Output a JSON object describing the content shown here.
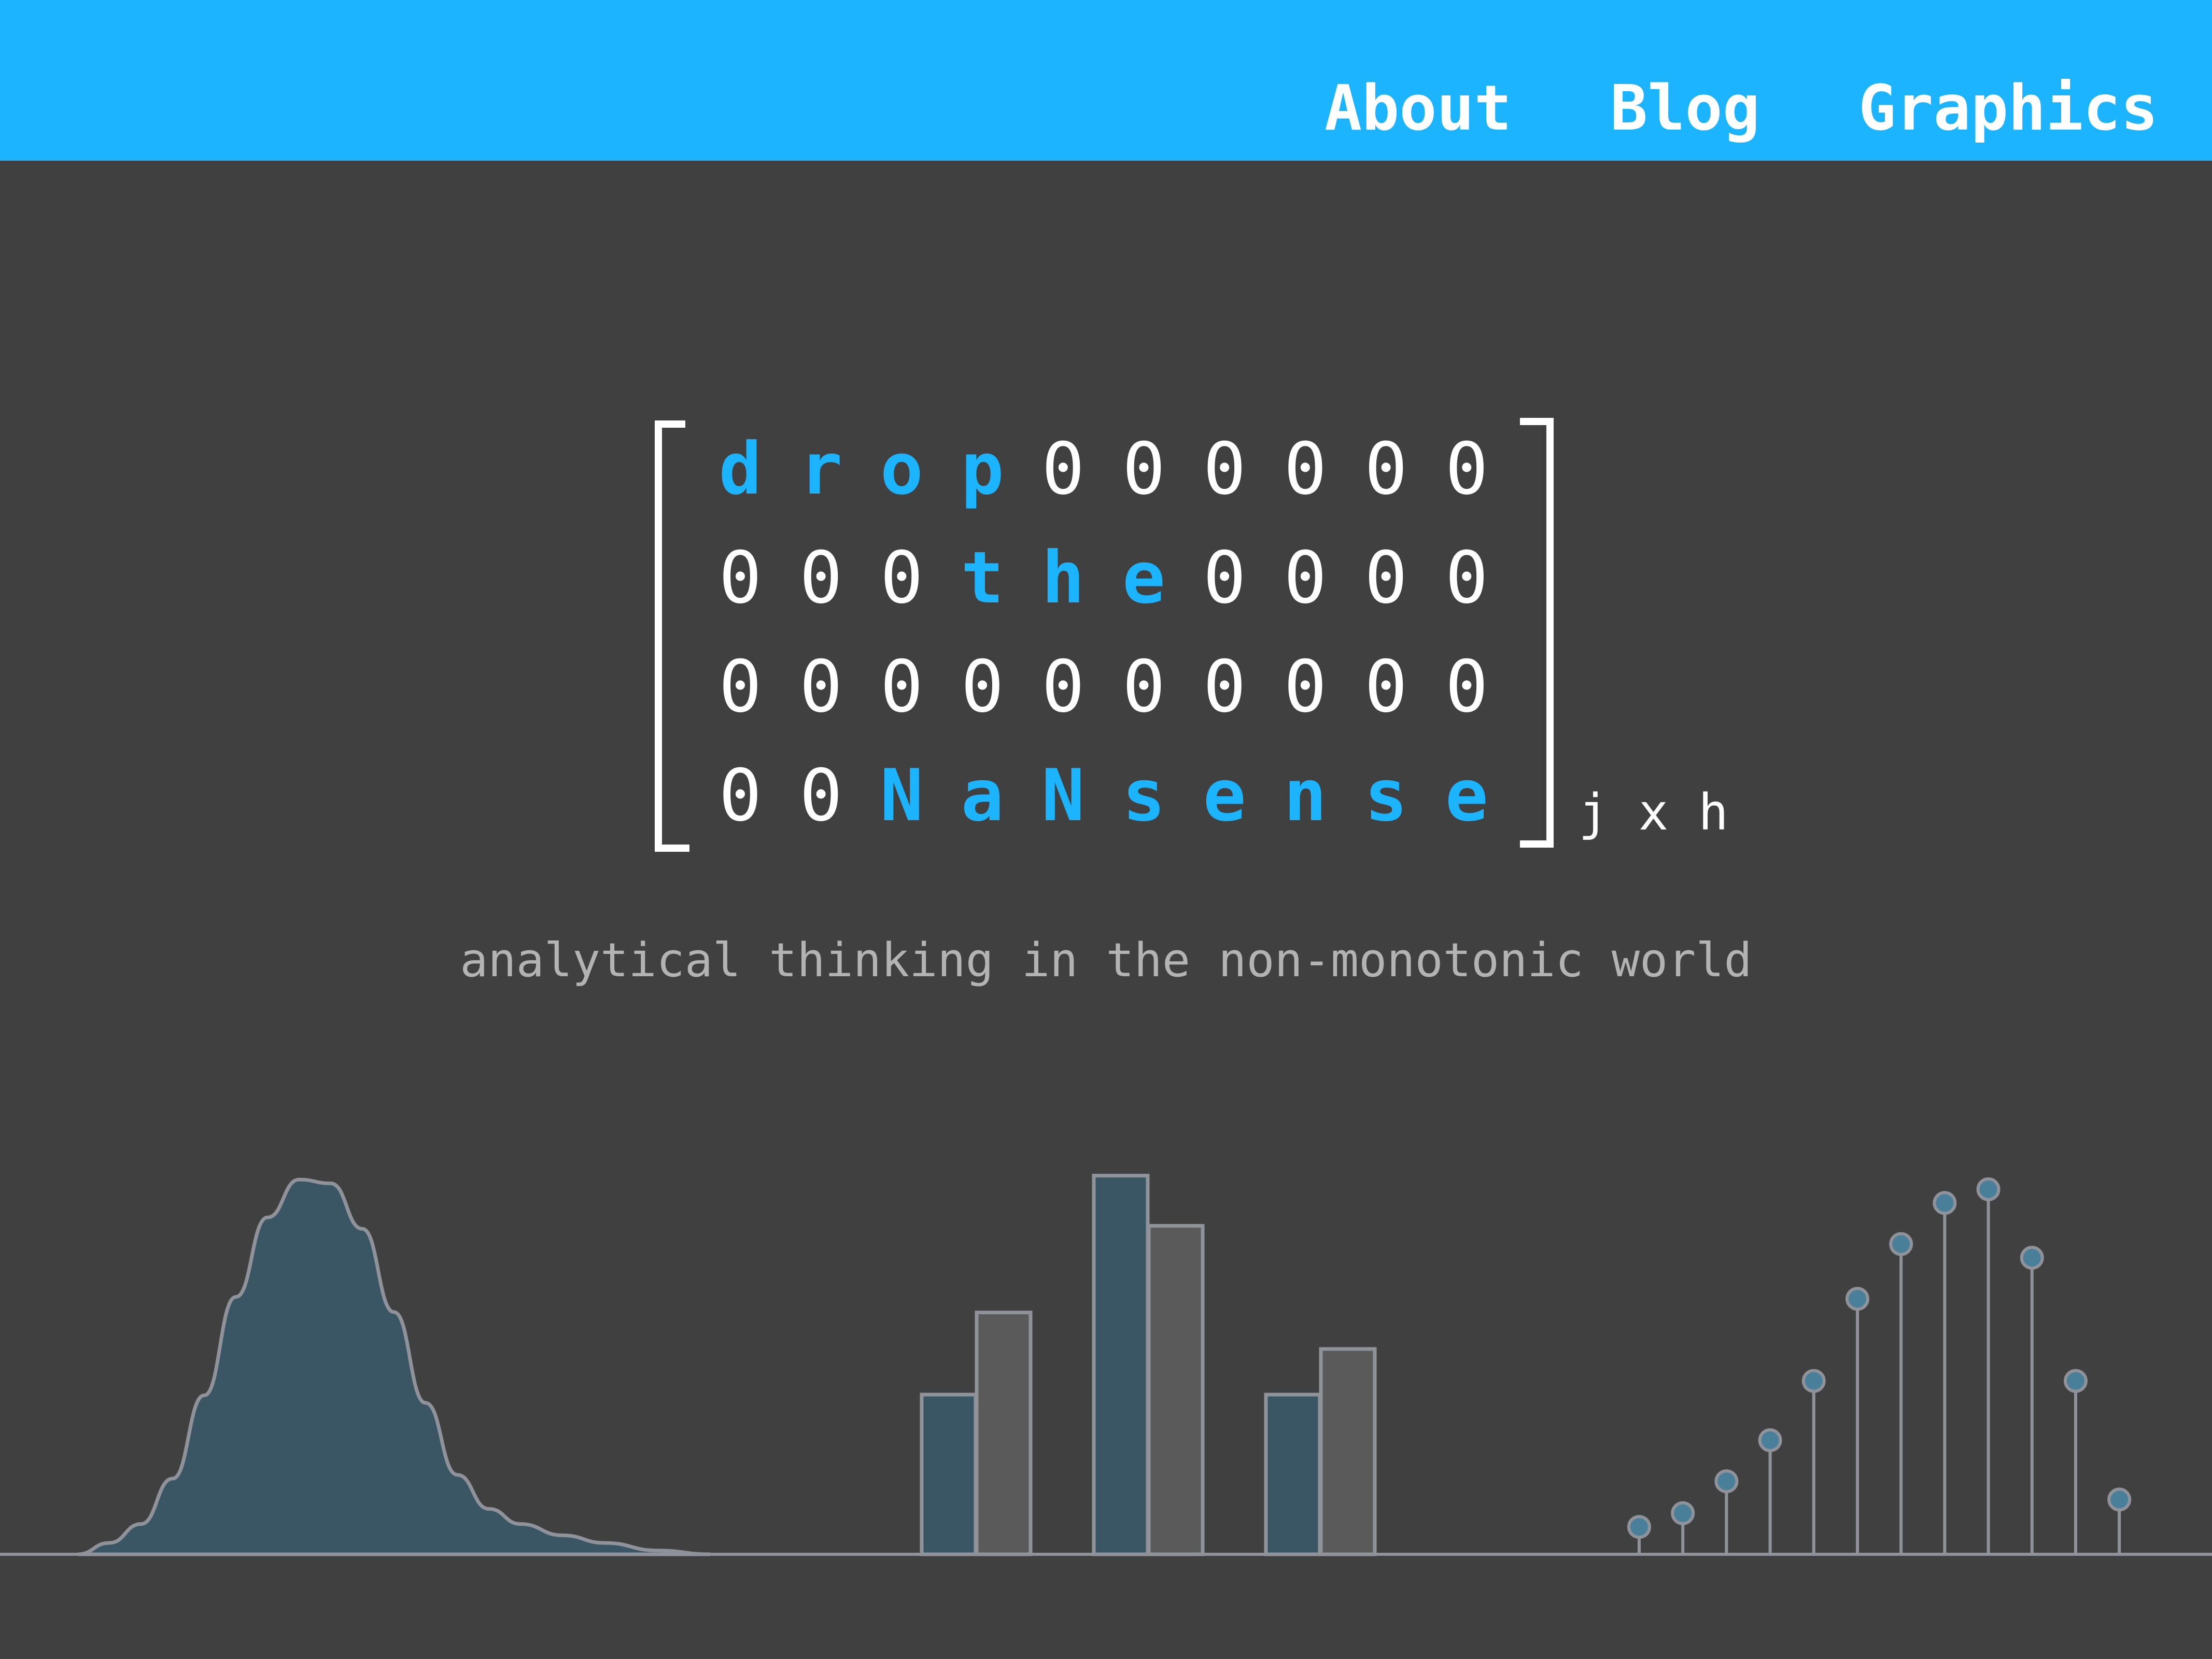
{
  "nav": {
    "about": "About",
    "blog": "Blog",
    "graphics": "Graphics"
  },
  "logo": {
    "rows": [
      [
        {
          "c": "d",
          "hl": true
        },
        {
          "c": "r",
          "hl": true
        },
        {
          "c": "o",
          "hl": true
        },
        {
          "c": "p",
          "hl": true
        },
        {
          "c": "0",
          "hl": false
        },
        {
          "c": "0",
          "hl": false
        },
        {
          "c": "0",
          "hl": false
        },
        {
          "c": "0",
          "hl": false
        },
        {
          "c": "0",
          "hl": false
        },
        {
          "c": "0",
          "hl": false
        }
      ],
      [
        {
          "c": "0",
          "hl": false
        },
        {
          "c": "0",
          "hl": false
        },
        {
          "c": "0",
          "hl": false
        },
        {
          "c": "t",
          "hl": true
        },
        {
          "c": "h",
          "hl": true
        },
        {
          "c": "e",
          "hl": true
        },
        {
          "c": "0",
          "hl": false
        },
        {
          "c": "0",
          "hl": false
        },
        {
          "c": "0",
          "hl": false
        },
        {
          "c": "0",
          "hl": false
        }
      ],
      [
        {
          "c": "0",
          "hl": false
        },
        {
          "c": "0",
          "hl": false
        },
        {
          "c": "0",
          "hl": false
        },
        {
          "c": "0",
          "hl": false
        },
        {
          "c": "0",
          "hl": false
        },
        {
          "c": "0",
          "hl": false
        },
        {
          "c": "0",
          "hl": false
        },
        {
          "c": "0",
          "hl": false
        },
        {
          "c": "0",
          "hl": false
        },
        {
          "c": "0",
          "hl": false
        }
      ],
      [
        {
          "c": "0",
          "hl": false
        },
        {
          "c": "0",
          "hl": false
        },
        {
          "c": "N",
          "hl": true
        },
        {
          "c": "a",
          "hl": true
        },
        {
          "c": "N",
          "hl": true
        },
        {
          "c": "s",
          "hl": true
        },
        {
          "c": "e",
          "hl": true
        },
        {
          "c": "n",
          "hl": true
        },
        {
          "c": "s",
          "hl": true
        },
        {
          "c": "e",
          "hl": true
        }
      ]
    ],
    "subscript": "j x h"
  },
  "tagline": "analytical thinking in the non-monotonic world",
  "colors": {
    "brand_blue": "#1cb4ff",
    "background": "#404040",
    "text_white": "#ffffff",
    "tagline_gray": "#b3b3b3",
    "chart_fill": "#3a5665",
    "chart_gray_fill": "#5a5a5a",
    "chart_stroke": "#8f9399",
    "stem_dot": "#4a7f99"
  },
  "decor": {
    "density_curve": {
      "points": [
        [
          0.0,
          0.0
        ],
        [
          0.3,
          0.03
        ],
        [
          0.6,
          0.08
        ],
        [
          0.9,
          0.2
        ],
        [
          1.2,
          0.42
        ],
        [
          1.5,
          0.68
        ],
        [
          1.8,
          0.89
        ],
        [
          2.1,
          0.99
        ],
        [
          2.4,
          0.98
        ],
        [
          2.7,
          0.86
        ],
        [
          3.0,
          0.64
        ],
        [
          3.3,
          0.4
        ],
        [
          3.6,
          0.21
        ],
        [
          3.9,
          0.12
        ],
        [
          4.2,
          0.08
        ],
        [
          4.6,
          0.05
        ],
        [
          5.0,
          0.03
        ],
        [
          5.5,
          0.01
        ],
        [
          6.0,
          0.0
        ]
      ]
    },
    "paired_bars": {
      "pairs": [
        [
          0.35,
          0.53
        ],
        [
          0.83,
          0.72
        ],
        [
          0.35,
          0.45
        ]
      ]
    },
    "stem_plot": {
      "values": [
        0.06,
        0.09,
        0.16,
        0.25,
        0.38,
        0.56,
        0.68,
        0.77,
        0.8,
        0.65,
        0.38,
        0.12
      ]
    }
  }
}
